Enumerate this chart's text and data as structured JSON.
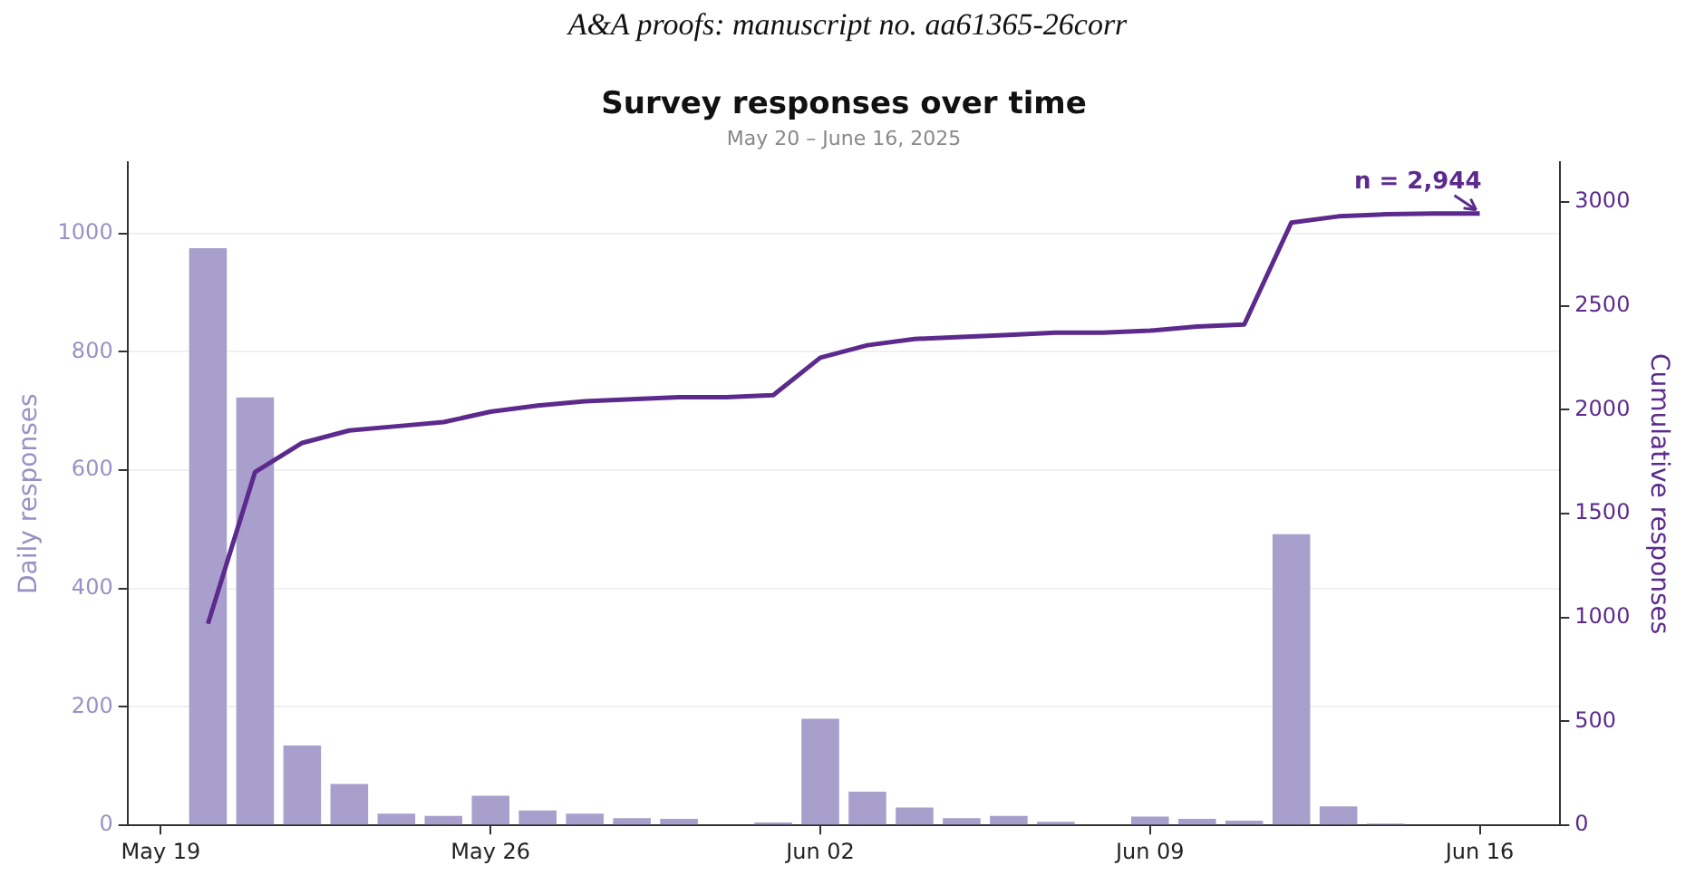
{
  "chart_data": {
    "type": "bar",
    "title": "Survey responses over time",
    "subtitle": "May 20 – June 16, 2025",
    "ylabel": "Daily responses",
    "y2label": "Cumulative responses",
    "annotations": [
      "A&A proofs: manuscript no. aa61365-26corr",
      "n = 2,944"
    ],
    "x": [
      "2025-05-20",
      "2025-05-21",
      "2025-05-22",
      "2025-05-23",
      "2025-05-24",
      "2025-05-25",
      "2025-05-26",
      "2025-05-27",
      "2025-05-28",
      "2025-05-29",
      "2025-05-30",
      "2025-05-31",
      "2025-06-01",
      "2025-06-02",
      "2025-06-03",
      "2025-06-04",
      "2025-06-05",
      "2025-06-06",
      "2025-06-07",
      "2025-06-08",
      "2025-06-09",
      "2025-06-10",
      "2025-06-11",
      "2025-06-12",
      "2025-06-13",
      "2025-06-14",
      "2025-06-15",
      "2025-06-16"
    ],
    "series": [
      {
        "color": "#a89fcc",
        "values": [
          975,
          723,
          135,
          70,
          20,
          16,
          50,
          25,
          20,
          12,
          11,
          0,
          5,
          180,
          57,
          30,
          12,
          16,
          6,
          0,
          15,
          11,
          8,
          492,
          32,
          3,
          0,
          0
        ]
      },
      {
        "type": "line",
        "axis": "y2",
        "color": "#5b2a8c",
        "values": [
          970,
          1700,
          1840,
          1900,
          1920,
          1940,
          1990,
          2020,
          2040,
          2050,
          2060,
          2060,
          2070,
          2250,
          2310,
          2340,
          2350,
          2360,
          2370,
          2370,
          2380,
          2400,
          2410,
          2900,
          2930,
          2940,
          2944,
          2944
        ]
      }
    ],
    "xlim": [
      "2025-05-18T07:00",
      "2025-06-17T17:00"
    ],
    "xticks": [
      {
        "value": "2025-05-19",
        "label": "May 19"
      },
      {
        "value": "2025-05-26",
        "label": "May 26"
      },
      {
        "value": "2025-06-02",
        "label": "Jun 02"
      },
      {
        "value": "2025-06-09",
        "label": "Jun 09"
      },
      {
        "value": "2025-06-16",
        "label": "Jun 16"
      }
    ],
    "ylim": [
      0,
      1120
    ],
    "yticks": [
      0,
      200,
      400,
      600,
      800,
      1000
    ],
    "y2lim": [
      0,
      3190
    ],
    "y2ticks": [
      0,
      500,
      1000,
      1500,
      2000,
      2500,
      3000
    ],
    "grid": "y",
    "legend": false
  }
}
